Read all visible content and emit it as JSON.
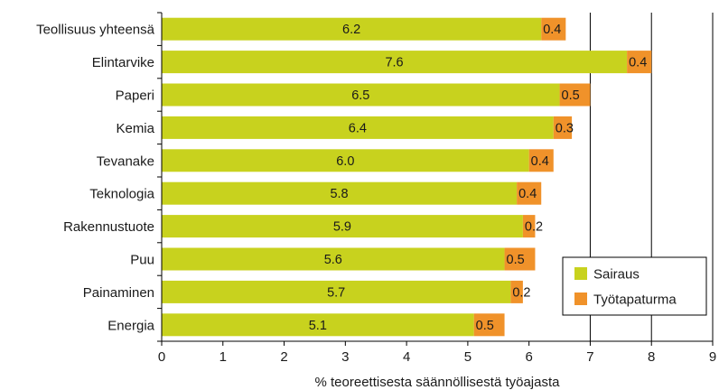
{
  "chart_data": {
    "type": "bar",
    "orientation": "horizontal",
    "stacked": true,
    "categories": [
      "Teollisuus yhteensä",
      "Elintarvike",
      "Paperi",
      "Kemia",
      "Tevanake",
      "Teknologia",
      "Rakennustuote",
      "Puu",
      "Painaminen",
      "Energia"
    ],
    "series": [
      {
        "name": "Sairaus",
        "color": "#c8d21e",
        "values": [
          6.2,
          7.6,
          6.5,
          6.4,
          6.0,
          5.8,
          5.9,
          5.6,
          5.7,
          5.1
        ],
        "labels": [
          "6.2",
          "7.6",
          "6.5",
          "6.4",
          "6.0",
          "5.8",
          "5.9",
          "5.6",
          "5.7",
          "5.1"
        ]
      },
      {
        "name": "Työtapaturma",
        "color": "#f0922a",
        "values": [
          0.4,
          0.4,
          0.5,
          0.3,
          0.4,
          0.4,
          0.2,
          0.5,
          0.2,
          0.5
        ],
        "labels": [
          "0.4",
          "0.4",
          "0.5",
          "0.3",
          "0.4",
          "0.4",
          "0.2",
          "0.5",
          "0.2",
          "0.5"
        ]
      }
    ],
    "xlabel": "% teoreettisesta säännöllisestä työajasta",
    "ylabel": "",
    "title": "",
    "xlim": [
      0,
      9
    ],
    "xticks": [
      "0",
      "1",
      "2",
      "3",
      "4",
      "5",
      "6",
      "7",
      "8",
      "9"
    ],
    "gridlines_at": [
      7,
      8
    ],
    "legend_position": "bottom-right"
  }
}
